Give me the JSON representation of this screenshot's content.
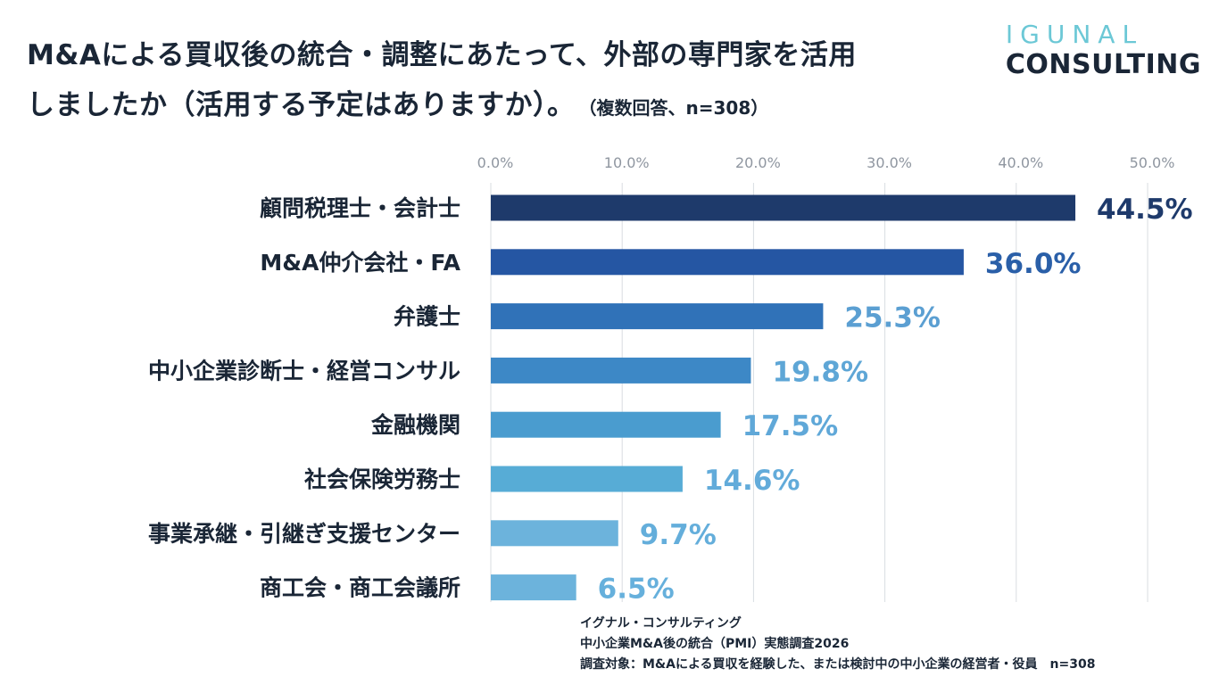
{
  "header": {
    "title_line1": "M&Aによる買収後の統合・調整にあたって、外部の専門家を活用",
    "title_line2": "しましたか（活用する予定はありますか）。",
    "title_note": "（複数回答、n=308）"
  },
  "logo": {
    "line1": "IGUNAL",
    "line2": "CONSULTING"
  },
  "chart_data": {
    "type": "bar",
    "orientation": "horizontal",
    "title": "M&Aによる買収後の統合・調整にあたって、外部の専門家を活用しましたか（活用する予定はありますか）。",
    "categories": [
      "顧問税理士・会計士",
      "M&A仲介会社・FA",
      "弁護士",
      "中小企業診断士・経営コンサル",
      "金融機関",
      "社会保険労務士",
      "事業承継・引継ぎ支援センター",
      "商工会・商工会議所"
    ],
    "values": [
      44.5,
      36.0,
      25.3,
      19.8,
      17.5,
      14.6,
      9.7,
      6.5
    ],
    "value_labels": [
      "44.5%",
      "36.0%",
      "25.3%",
      "19.8%",
      "17.5%",
      "14.6%",
      "9.7%",
      "6.5%"
    ],
    "xlim": [
      0,
      50
    ],
    "xticks": [
      0,
      10,
      20,
      30,
      40,
      50
    ],
    "xtick_labels": [
      "0.0%",
      "10.0%",
      "20.0%",
      "30.0%",
      "40.0%",
      "50.0%"
    ],
    "bar_colors": [
      "#1e3a6b",
      "#2556a3",
      "#3072b8",
      "#3d88c6",
      "#4a9ccf",
      "#57acd6",
      "#6cb3dc",
      "#6cb3dc"
    ],
    "label_colors": [
      "#1e3a6b",
      "#2a5fa8",
      "#5b9fd2",
      "#5ea6d6",
      "#60a8d8",
      "#62abda",
      "#64aedb",
      "#66b0dc"
    ],
    "grid": true,
    "axis_position": "top"
  },
  "footer": {
    "line1": "イグナル・コンサルティング",
    "line2": "中小企業M&A後の統合（PMI）実態調査2026",
    "line3": "調査対象：M&Aによる買収を経験した、または検討中の中小企業の経営者・役員　n=308"
  }
}
